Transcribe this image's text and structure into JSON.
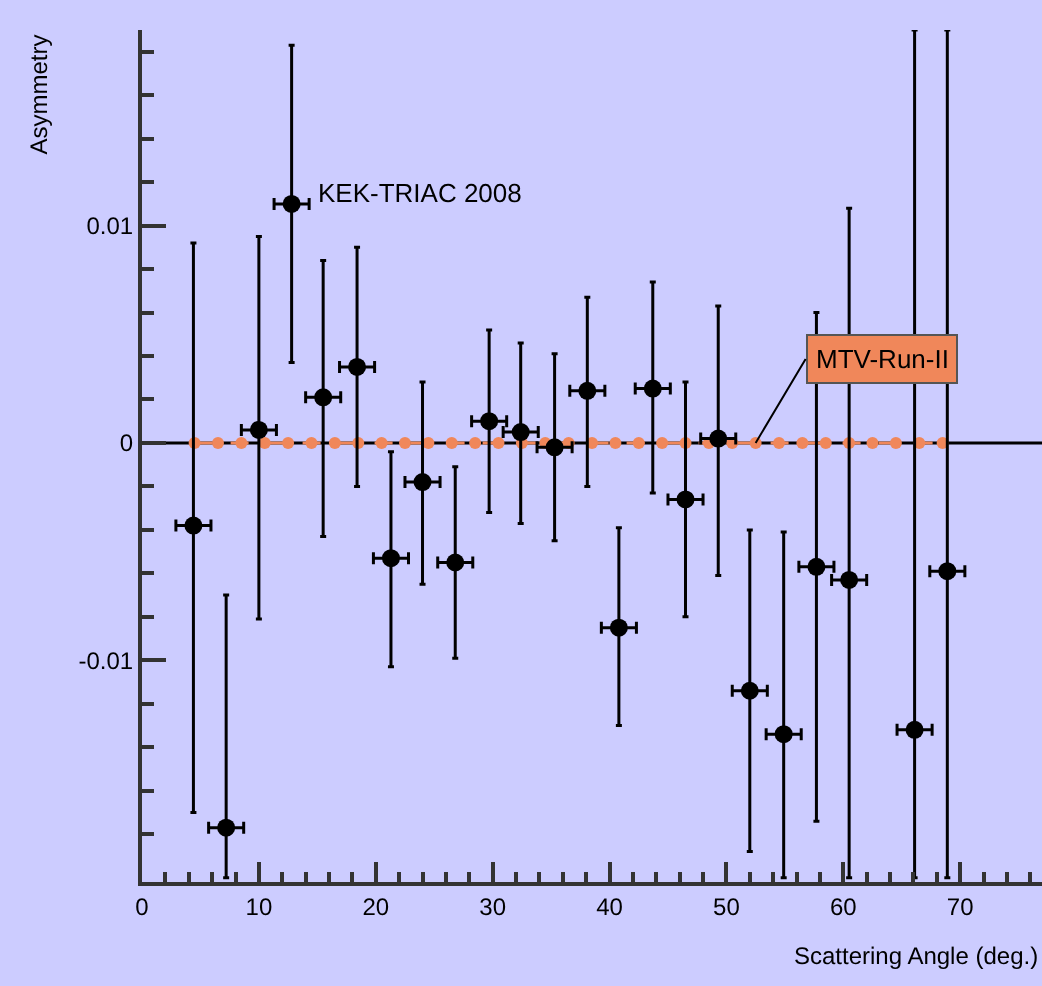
{
  "chart_data": {
    "type": "scatter",
    "xlabel": "Scattering Angle (deg.)",
    "ylabel": "Asymmetry",
    "x": [
      4.4,
      7.2,
      10.0,
      12.8,
      15.5,
      18.4,
      21.3,
      24.0,
      26.8,
      29.7,
      32.4,
      35.3,
      38.1,
      40.8,
      43.7,
      46.5,
      49.3,
      52.0,
      54.9,
      57.7,
      60.5,
      66.1,
      68.9
    ],
    "series": [
      {
        "name": "KEK-TRIAC 2008",
        "color": "#000000",
        "marker": "circle",
        "values": [
          -0.0038,
          -0.0177,
          0.0006,
          0.011,
          0.0021,
          0.0035,
          -0.0053,
          -0.0018,
          -0.0055,
          0.001,
          0.0005,
          -0.0002,
          0.0024,
          -0.0085,
          0.0025,
          -0.0026,
          0.0002,
          -0.0114,
          -0.0134,
          -0.0057,
          -0.0063,
          -0.0132,
          -0.0059
        ],
        "errors": [
          [
            -0.017,
            0.0092
          ],
          [
            -0.02,
            -0.007
          ],
          [
            -0.0081,
            0.0095
          ],
          [
            0.0037,
            0.0183
          ],
          [
            -0.0043,
            0.0084
          ],
          [
            -0.002,
            0.009
          ],
          [
            -0.0103,
            -0.0004
          ],
          [
            -0.0065,
            0.0028
          ],
          [
            -0.0099,
            -0.0011
          ],
          [
            -0.0032,
            0.0052
          ],
          [
            -0.0037,
            0.0046
          ],
          [
            -0.0045,
            0.0041
          ],
          [
            -0.002,
            0.0067
          ],
          [
            -0.013,
            -0.0039
          ],
          [
            -0.0023,
            0.0074
          ],
          [
            -0.008,
            0.0028
          ],
          [
            -0.0061,
            0.0063
          ],
          [
            -0.0188,
            -0.004
          ],
          [
            -0.02,
            -0.0041
          ],
          [
            -0.0174,
            0.006
          ],
          [
            -0.02,
            0.0108
          ],
          [
            -0.02,
            0.019
          ],
          [
            -0.02,
            0.019
          ]
        ],
        "xerrors": [
          1.5,
          1.5,
          1.5,
          1.5,
          1.5,
          1.5,
          1.5,
          1.5,
          1.5,
          1.5,
          1.5,
          1.5,
          1.5,
          1.5,
          1.5,
          1.5,
          1.5,
          1.5,
          1.5,
          1.5,
          1.5,
          1.5,
          1.5
        ]
      },
      {
        "name": "MTV-Run-II",
        "color": "#f0875a",
        "type": "line",
        "marker": "circle",
        "line_style": "dashed",
        "x": [
          4.5,
          6.5,
          8.5,
          10.5,
          12.5,
          14.5,
          16.5,
          18.5,
          20.5,
          22.5,
          24.5,
          26.5,
          28.5,
          30.5,
          32.5,
          34.5,
          36.5,
          38.5,
          40.5,
          42.5,
          44.5,
          46.5,
          48.5,
          50.5,
          52.5,
          54.5,
          56.5,
          58.5,
          60.5,
          62.5,
          64.5,
          66.5,
          68.5
        ],
        "values": [
          0,
          0,
          0,
          0,
          0,
          0,
          0,
          0,
          0,
          0,
          0,
          0,
          0,
          0,
          0,
          0,
          0,
          0,
          0,
          0,
          0,
          0,
          0,
          0,
          0,
          0,
          0,
          0,
          0,
          0,
          0,
          0,
          0
        ]
      }
    ],
    "ref_lines": [
      {
        "axis": "y",
        "value": 0,
        "color": "#000000"
      }
    ],
    "xlim": [
      0,
      77
    ],
    "ylim": [
      -0.0202,
      0.019
    ],
    "xticks": [
      0,
      {
        "value": 2,
        "label": null
      },
      {
        "value": 4,
        "label": null
      },
      {
        "value": 6,
        "label": null
      },
      {
        "value": 8,
        "label": null
      },
      10,
      {
        "value": 12,
        "label": null
      },
      {
        "value": 14,
        "label": null
      },
      {
        "value": 16,
        "label": null
      },
      {
        "value": 18,
        "label": null
      },
      20,
      {
        "value": 22,
        "label": null
      },
      {
        "value": 24,
        "label": null
      },
      {
        "value": 26,
        "label": null
      },
      {
        "value": 28,
        "label": null
      },
      30,
      {
        "value": 32,
        "label": null
      },
      {
        "value": 34,
        "label": null
      },
      {
        "value": 36,
        "label": null
      },
      {
        "value": 38,
        "label": null
      },
      40,
      {
        "value": 42,
        "label": null
      },
      {
        "value": 44,
        "label": null
      },
      {
        "value": 46,
        "label": null
      },
      {
        "value": 48,
        "label": null
      },
      50,
      {
        "value": 52,
        "label": null
      },
      {
        "value": 54,
        "label": null
      },
      {
        "value": 56,
        "label": null
      },
      {
        "value": 58,
        "label": null
      },
      60,
      {
        "value": 62,
        "label": null
      },
      {
        "value": 64,
        "label": null
      },
      {
        "value": 66,
        "label": null
      },
      {
        "value": 68,
        "label": null
      },
      70,
      {
        "value": 72,
        "label": null
      },
      {
        "value": 74,
        "label": null
      },
      {
        "value": 76,
        "label": null
      }
    ],
    "yticks": [
      {
        "value": -0.018,
        "label": null
      },
      {
        "value": -0.016,
        "label": null
      },
      {
        "value": -0.014,
        "label": null
      },
      {
        "value": -0.012,
        "label": null
      },
      -0.01,
      {
        "value": -0.008,
        "label": null
      },
      {
        "value": -0.006,
        "label": null
      },
      {
        "value": -0.004,
        "label": null
      },
      {
        "value": -0.002,
        "label": null
      },
      0,
      {
        "value": 0.002,
        "label": null
      },
      {
        "value": 0.004,
        "label": null
      },
      {
        "value": 0.006,
        "label": null
      },
      {
        "value": 0.008,
        "label": null
      },
      0.01,
      {
        "value": 0.012,
        "label": null
      },
      {
        "value": 0.014,
        "label": null
      },
      {
        "value": 0.016,
        "label": null
      },
      {
        "value": 0.018,
        "label": null
      }
    ],
    "grid": false,
    "legend": false
  }
}
